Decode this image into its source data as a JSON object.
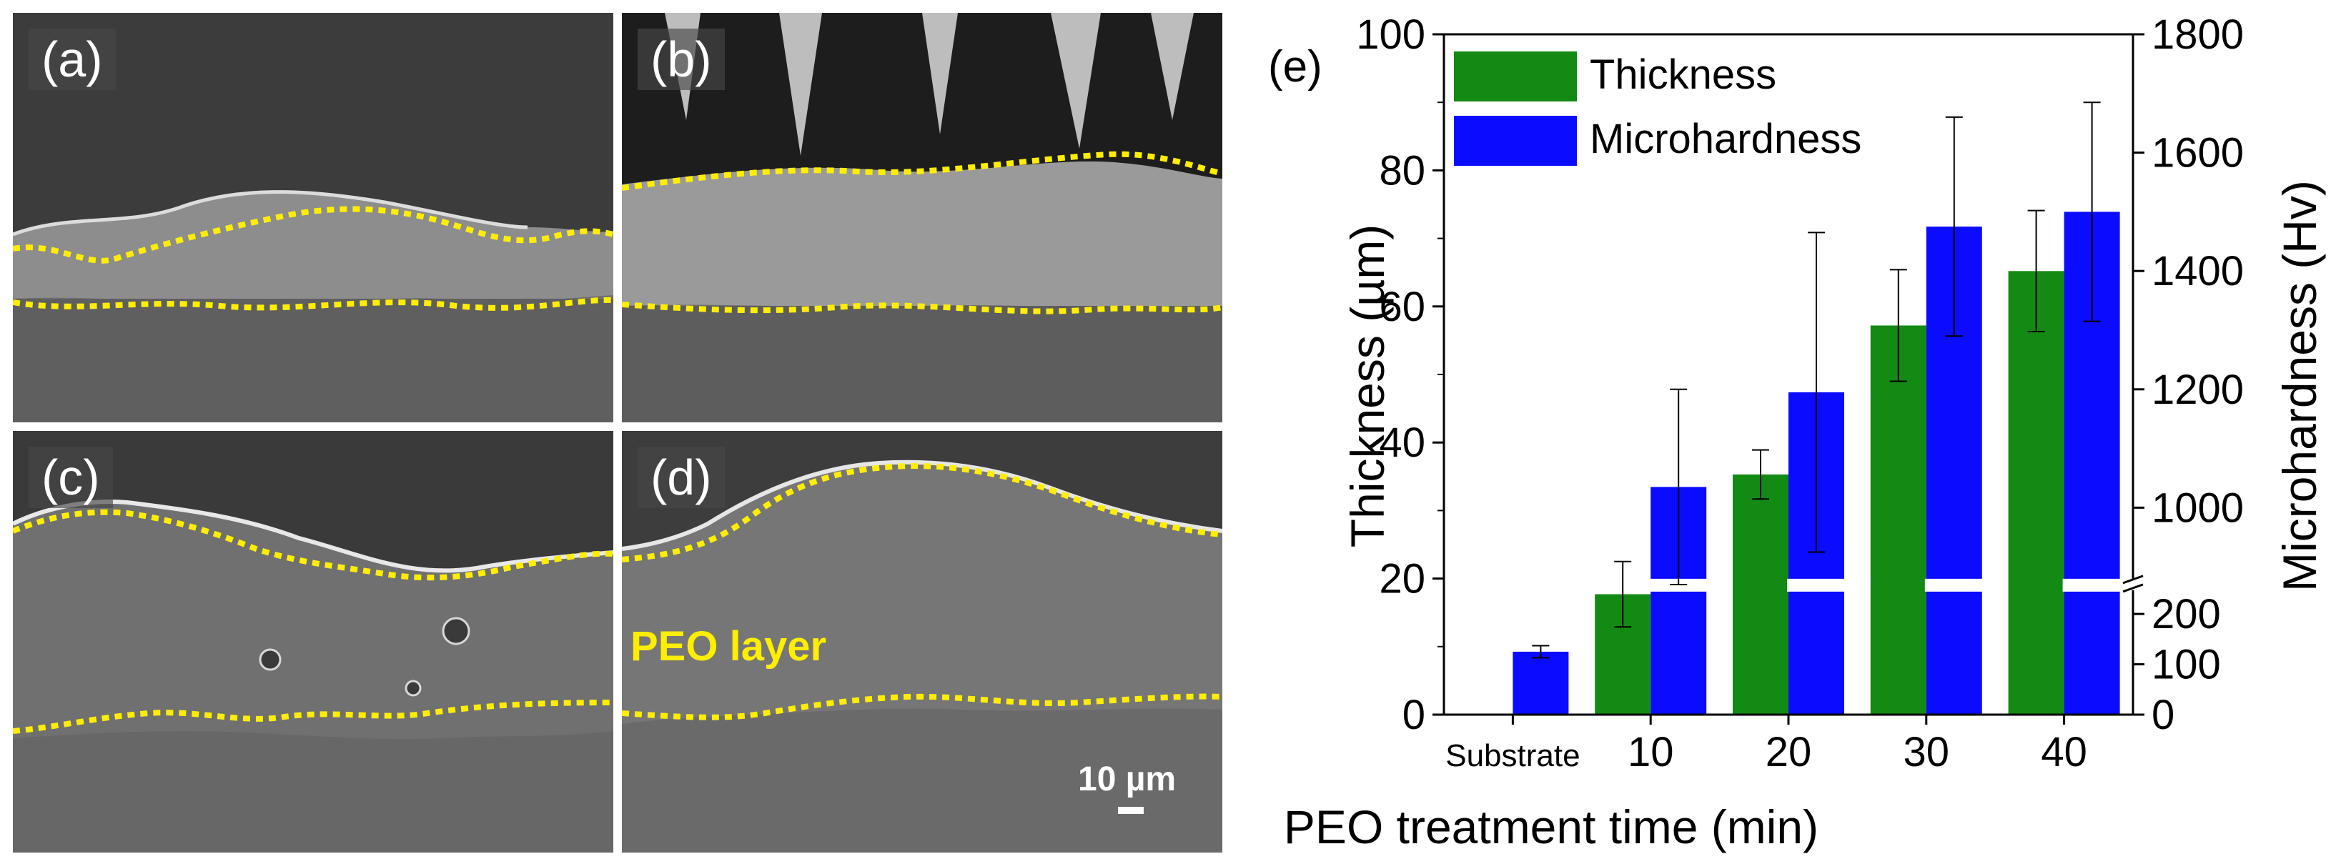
{
  "sem_panels": [
    {
      "label": "(a)"
    },
    {
      "label": "(b)"
    },
    {
      "label": "(c)"
    },
    {
      "label": "(d)",
      "annotation": "PEO layer",
      "scale_bar_label": "10 µm"
    }
  ],
  "colors": {
    "thickness": "#138a13",
    "microhardness": "#0b0bff",
    "boundary": "#ffee00"
  },
  "chart_data": {
    "type": "bar",
    "panel_label": "(e)",
    "categories": [
      "Substrate",
      "10",
      "20",
      "30",
      "40"
    ],
    "xlabel": "PEO treatment time (min)",
    "ylabel": "Thickness (µm)",
    "y2label": "Microhardness (Hv)",
    "ylim": [
      0,
      100
    ],
    "yticks": [
      "0",
      "20",
      "40",
      "60",
      "80",
      "100"
    ],
    "y2_broken_axis": {
      "lower_range": [
        0,
        250
      ],
      "upper_range": [
        875,
        1800
      ],
      "lower_ticks": [
        "0",
        "100",
        "200"
      ],
      "upper_ticks": [
        "1000",
        "1200",
        "1400",
        "1600",
        "1800"
      ]
    },
    "legend": [
      "Thickness",
      "Microhardness"
    ],
    "legend_position": "top-left",
    "series": [
      {
        "name": "Thickness",
        "axis": "left",
        "values": [
          null,
          17.7,
          35.3,
          57.2,
          65.2
        ],
        "errors": [
          null,
          4.8,
          3.6,
          8.2,
          8.9
        ]
      },
      {
        "name": "Microhardness",
        "axis": "right",
        "values": [
          125,
          1035,
          1195,
          1475,
          1500
        ],
        "errors": [
          12,
          165,
          270,
          185,
          185
        ]
      }
    ]
  }
}
